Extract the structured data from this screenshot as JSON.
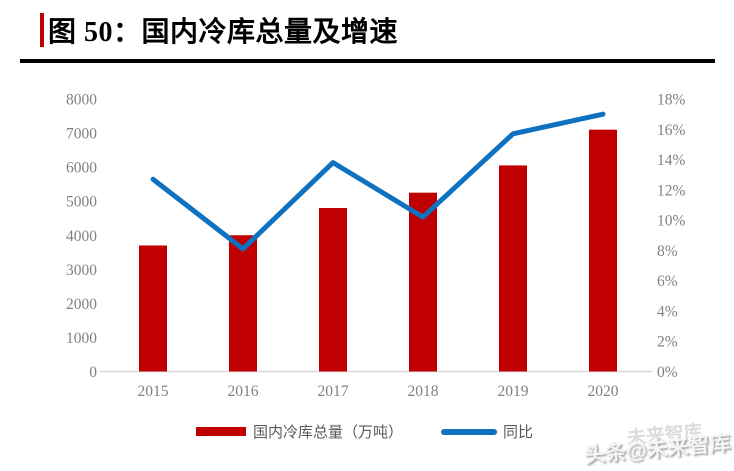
{
  "header": {
    "text": "图 50：国内冷库总量及增速",
    "accent_color": "#C00000"
  },
  "chart_data": {
    "type": "bar+line combo",
    "title": "国内冷库总量及增速",
    "categories": [
      "2015",
      "2016",
      "2017",
      "2018",
      "2019",
      "2020"
    ],
    "series": [
      {
        "name": "国内冷库总量（万吨）",
        "type": "bar",
        "axis": "left",
        "color": "#C00000",
        "values": [
          3700,
          4000,
          4800,
          5250,
          6050,
          7100
        ]
      },
      {
        "name": "同比",
        "type": "line",
        "axis": "right",
        "color": "#0F72C1",
        "values": [
          12.7,
          8.1,
          13.8,
          10.2,
          15.7,
          17.0
        ]
      }
    ],
    "left_axis": {
      "min": 0,
      "max": 8000,
      "step": 1000,
      "tick_labels": [
        "0",
        "1000",
        "2000",
        "3000",
        "4000",
        "5000",
        "6000",
        "7000",
        "8000"
      ]
    },
    "right_axis": {
      "min": 0,
      "max": 18,
      "step": 2,
      "tick_labels": [
        "0%",
        "2%",
        "4%",
        "6%",
        "8%",
        "10%",
        "12%",
        "14%",
        "16%",
        "18%"
      ]
    },
    "grid": false,
    "legend_position": "bottom",
    "axis_label_color": "#808080",
    "baseline_color": "#D9D9D9"
  },
  "watermark": {
    "text": "头条@未来智库",
    "ghost": "未来智库"
  }
}
